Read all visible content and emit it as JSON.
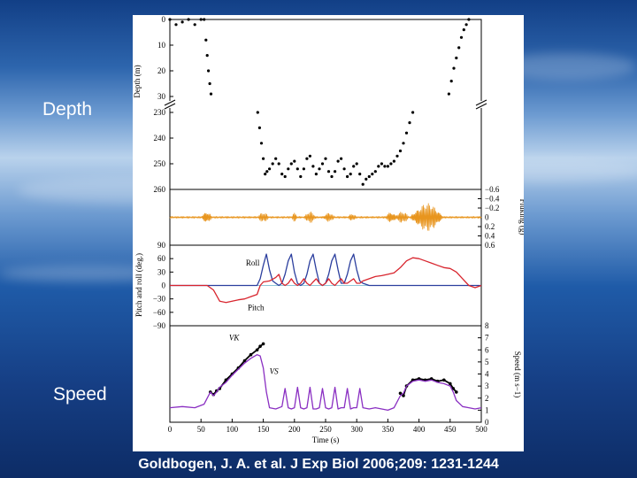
{
  "slide": {
    "label_depth": "Depth",
    "label_speed": "Speed",
    "citation": "Goldbogen, J. A. et al. J Exp Biol 2006;209: 1231-1244"
  },
  "chart_data": [
    {
      "type": "scatter",
      "panel": "depth",
      "ylabel": "Depth (m)",
      "y_segments": [
        {
          "range": [
            0,
            30
          ],
          "ticks": [
            "0",
            "10",
            "20",
            "30"
          ]
        },
        {
          "range": [
            230,
            260
          ],
          "ticks": [
            "230",
            "240",
            "250",
            "260"
          ]
        }
      ],
      "axis_break": true,
      "color": "#000000",
      "series": [
        {
          "x": [
            0,
            10,
            20,
            30,
            40,
            50,
            55,
            58,
            60,
            62,
            64,
            66
          ],
          "y": [
            0,
            2,
            1,
            0,
            2,
            0,
            0,
            8,
            14,
            20,
            25,
            29
          ]
        },
        {
          "x": [
            141,
            144,
            147,
            150,
            153,
            156,
            160,
            165,
            170,
            175,
            180,
            185,
            190,
            195,
            200,
            205,
            210,
            215,
            220,
            225,
            230,
            235,
            240,
            245,
            250,
            255,
            260,
            265,
            270,
            275,
            280,
            285,
            290,
            295,
            300,
            305,
            310,
            315,
            320,
            325,
            330,
            335,
            340,
            345,
            350,
            355,
            360,
            365,
            370,
            375,
            380,
            385,
            390
          ],
          "y": [
            230,
            236,
            242,
            248,
            254,
            253,
            252,
            250,
            248,
            250,
            254,
            255,
            252,
            250,
            249,
            252,
            255,
            252,
            248,
            247,
            251,
            254,
            252,
            250,
            248,
            253,
            255,
            253,
            249,
            248,
            252,
            255,
            254,
            251,
            250,
            254,
            258,
            256,
            255,
            254,
            253,
            251,
            250,
            251,
            251,
            250,
            249,
            247,
            245,
            242,
            238,
            234,
            230
          ]
        },
        {
          "x": [
            448,
            452,
            456,
            460,
            464,
            468,
            472,
            476,
            480
          ],
          "y": [
            29,
            24,
            19,
            15,
            11,
            7,
            4,
            2,
            0
          ]
        }
      ]
    },
    {
      "type": "line",
      "panel": "fluking",
      "ylabel": "Fluking (g)",
      "ylim": [
        -0.6,
        0.6
      ],
      "yticks": [
        "−0.6",
        "−0.4",
        "−0.2",
        "0",
        "0.2",
        "0.4",
        "0.6"
      ],
      "color": "#e8951e",
      "bursts": [
        {
          "x_start": 50,
          "x_end": 68,
          "amplitude": 0.13
        },
        {
          "x_start": 140,
          "x_end": 160,
          "amplitude": 0.1
        },
        {
          "x_start": 195,
          "x_end": 205,
          "amplitude": 0.1
        },
        {
          "x_start": 215,
          "x_end": 235,
          "amplitude": 0.12
        },
        {
          "x_start": 245,
          "x_end": 265,
          "amplitude": 0.1
        },
        {
          "x_start": 285,
          "x_end": 300,
          "amplitude": 0.08
        },
        {
          "x_start": 345,
          "x_end": 365,
          "amplitude": 0.12
        },
        {
          "x_start": 360,
          "x_end": 385,
          "amplitude": 0.12
        },
        {
          "x_start": 385,
          "x_end": 440,
          "amplitude": 0.3
        }
      ]
    },
    {
      "type": "line",
      "panel": "pitch-roll",
      "ylabel": "Pitch and roll (deg.)",
      "ylim": [
        -90,
        90
      ],
      "yticks": [
        "90",
        "60",
        "30",
        "0",
        "−30",
        "−60",
        "−90"
      ],
      "annotations": [
        "Roll",
        "Pitch"
      ],
      "series": [
        {
          "name": "Roll",
          "color": "#2c3f9e",
          "x": [
            0,
            100,
            140,
            145,
            150,
            155,
            160,
            165,
            170,
            175,
            180,
            185,
            190,
            195,
            200,
            205,
            210,
            215,
            220,
            225,
            230,
            235,
            240,
            245,
            250,
            255,
            260,
            265,
            270,
            275,
            280,
            285,
            290,
            295,
            300,
            305,
            310,
            320,
            340,
            360,
            380,
            400,
            440,
            460,
            480,
            490,
            500
          ],
          "y": [
            0,
            0,
            0,
            15,
            45,
            70,
            35,
            10,
            5,
            0,
            5,
            25,
            55,
            70,
            30,
            5,
            0,
            5,
            25,
            55,
            70,
            35,
            5,
            0,
            5,
            25,
            55,
            70,
            35,
            5,
            5,
            25,
            55,
            70,
            35,
            10,
            5,
            0,
            0,
            0,
            0,
            0,
            0,
            0,
            0,
            0,
            0
          ]
        },
        {
          "name": "Pitch",
          "color": "#d8252e",
          "x": [
            0,
            30,
            60,
            70,
            80,
            90,
            100,
            110,
            120,
            130,
            140,
            145,
            150,
            160,
            170,
            175,
            180,
            185,
            190,
            195,
            200,
            205,
            210,
            215,
            220,
            225,
            230,
            235,
            240,
            245,
            250,
            255,
            260,
            265,
            270,
            275,
            280,
            285,
            290,
            295,
            300,
            305,
            310,
            320,
            330,
            340,
            350,
            360,
            370,
            380,
            390,
            400,
            410,
            420,
            430,
            440,
            450,
            460,
            470,
            480,
            490,
            500
          ],
          "y": [
            0,
            0,
            0,
            -10,
            -35,
            -38,
            -35,
            -32,
            -30,
            -25,
            -20,
            0,
            8,
            10,
            18,
            25,
            5,
            0,
            5,
            15,
            5,
            0,
            5,
            15,
            5,
            0,
            8,
            15,
            5,
            0,
            5,
            15,
            5,
            0,
            8,
            15,
            5,
            5,
            10,
            15,
            5,
            5,
            10,
            15,
            20,
            22,
            25,
            28,
            40,
            55,
            62,
            60,
            55,
            50,
            45,
            40,
            38,
            30,
            15,
            0,
            -5,
            0
          ]
        }
      ]
    },
    {
      "type": "line",
      "panel": "speed",
      "xlabel": "Time (s)",
      "ylabel": "Speed (m s−1)",
      "ylim": [
        0,
        8
      ],
      "yticks": [
        "0",
        "1",
        "2",
        "3",
        "4",
        "5",
        "6",
        "7",
        "8"
      ],
      "xlim": [
        0,
        500
      ],
      "xticks": [
        "0",
        "50",
        "100",
        "150",
        "200",
        "250",
        "300",
        "350",
        "400",
        "450",
        "500"
      ],
      "annotations": [
        "VK",
        "VS"
      ],
      "series": [
        {
          "name": "VK",
          "color": "#000000",
          "x": [
            65,
            70,
            75,
            80,
            90,
            100,
            110,
            120,
            130,
            140,
            145,
            150
          ],
          "y": [
            2.5,
            2.3,
            2.6,
            2.8,
            3.5,
            4.0,
            4.5,
            5.1,
            5.6,
            6.0,
            6.3,
            6.5
          ]
        },
        {
          "name": "VK",
          "color": "#000000",
          "x": [
            370,
            375,
            380,
            390,
            400,
            410,
            420,
            430,
            440,
            450,
            455,
            460
          ],
          "y": [
            2.4,
            2.2,
            3.0,
            3.5,
            3.6,
            3.5,
            3.6,
            3.4,
            3.5,
            3.2,
            2.8,
            2.5
          ]
        },
        {
          "name": "VS",
          "color": "#8a2fc2",
          "x": [
            0,
            20,
            40,
            55,
            60,
            65,
            70,
            75,
            80,
            90,
            100,
            110,
            120,
            130,
            140,
            145,
            150,
            155,
            160,
            170,
            180,
            185,
            190,
            195,
            200,
            205,
            210,
            215,
            220,
            225,
            230,
            235,
            240,
            245,
            250,
            255,
            260,
            265,
            270,
            275,
            280,
            285,
            290,
            295,
            300,
            305,
            310,
            320,
            330,
            340,
            350,
            360,
            370,
            375,
            380,
            390,
            400,
            410,
            420,
            430,
            440,
            450,
            455,
            460,
            470,
            480,
            490,
            500
          ],
          "y": [
            1.2,
            1.3,
            1.2,
            1.5,
            2.0,
            2.5,
            2.2,
            2.5,
            2.9,
            3.3,
            3.9,
            4.4,
            4.9,
            5.3,
            5.6,
            5.5,
            4.5,
            2.5,
            1.2,
            1.1,
            1.3,
            2.8,
            1.2,
            1.1,
            1.2,
            2.9,
            1.2,
            1.1,
            1.2,
            2.9,
            1.1,
            1.1,
            1.2,
            2.8,
            1.2,
            1.1,
            1.2,
            2.9,
            1.1,
            1.2,
            1.2,
            2.8,
            1.1,
            1.2,
            1.2,
            2.8,
            1.2,
            1.1,
            1.2,
            1.1,
            1.0,
            1.2,
            2.2,
            2.4,
            3.0,
            3.4,
            3.5,
            3.4,
            3.5,
            3.3,
            3.2,
            3.0,
            2.5,
            1.8,
            1.3,
            1.2,
            1.1,
            1.2
          ]
        }
      ]
    }
  ]
}
